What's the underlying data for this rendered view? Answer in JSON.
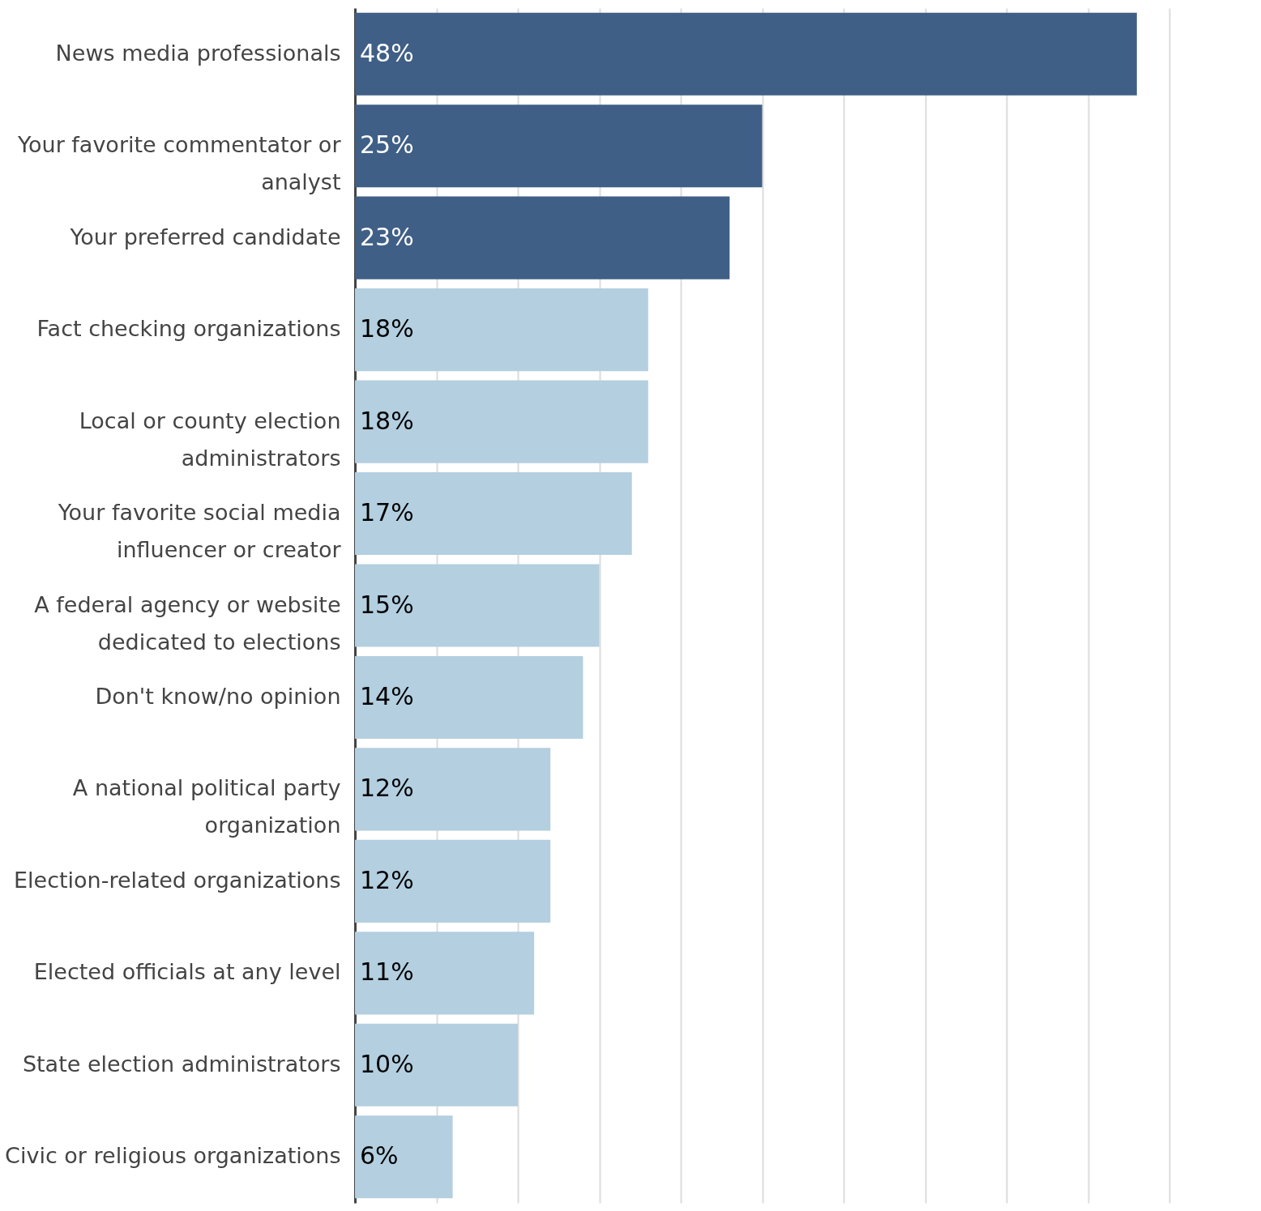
{
  "chart_data": {
    "type": "bar",
    "orientation": "horizontal",
    "categories": [
      "News media professionals",
      "Your favorite commentator or analyst",
      "Your preferred candidate",
      "Fact checking organizations",
      "Local or county election administrators",
      "Your favorite social media influencer or creator",
      "A federal agency or website dedicated to elections",
      "Don't know/no opinion",
      "A national political party organization",
      "Election-related organizations",
      "Elected officials at any level",
      "State election administrators",
      "Civic or religious organizations"
    ],
    "values": [
      48,
      25,
      23,
      18,
      18,
      17,
      15,
      14,
      12,
      12,
      11,
      10,
      6
    ],
    "value_labels": [
      "48%",
      "25%",
      "23%",
      "18%",
      "18%",
      "17%",
      "15%",
      "14%",
      "12%",
      "12%",
      "11%",
      "10%",
      "6%"
    ],
    "colors": [
      "#3f5f86",
      "#3f5f86",
      "#3f5f86",
      "#b3cfe0",
      "#b3cfe0",
      "#b3cfe0",
      "#b3cfe0",
      "#b3cfe0",
      "#b3cfe0",
      "#b3cfe0",
      "#b3cfe0",
      "#b3cfe0",
      "#b3cfe0"
    ],
    "xlim": [
      0,
      50
    ],
    "xticks": [
      {
        "value": 0,
        "label": null
      },
      {
        "value": 5,
        "label": null
      },
      {
        "value": 10,
        "label": null
      },
      {
        "value": 15,
        "label": null
      },
      {
        "value": 20,
        "label": null
      },
      {
        "value": 25,
        "label": null
      },
      {
        "value": 30,
        "label": null
      },
      {
        "value": 35,
        "label": null
      },
      {
        "value": 40,
        "label": null
      },
      {
        "value": 45,
        "label": null
      },
      {
        "value": 50,
        "label": null
      }
    ],
    "grid": "x",
    "tick_labels": "y"
  }
}
